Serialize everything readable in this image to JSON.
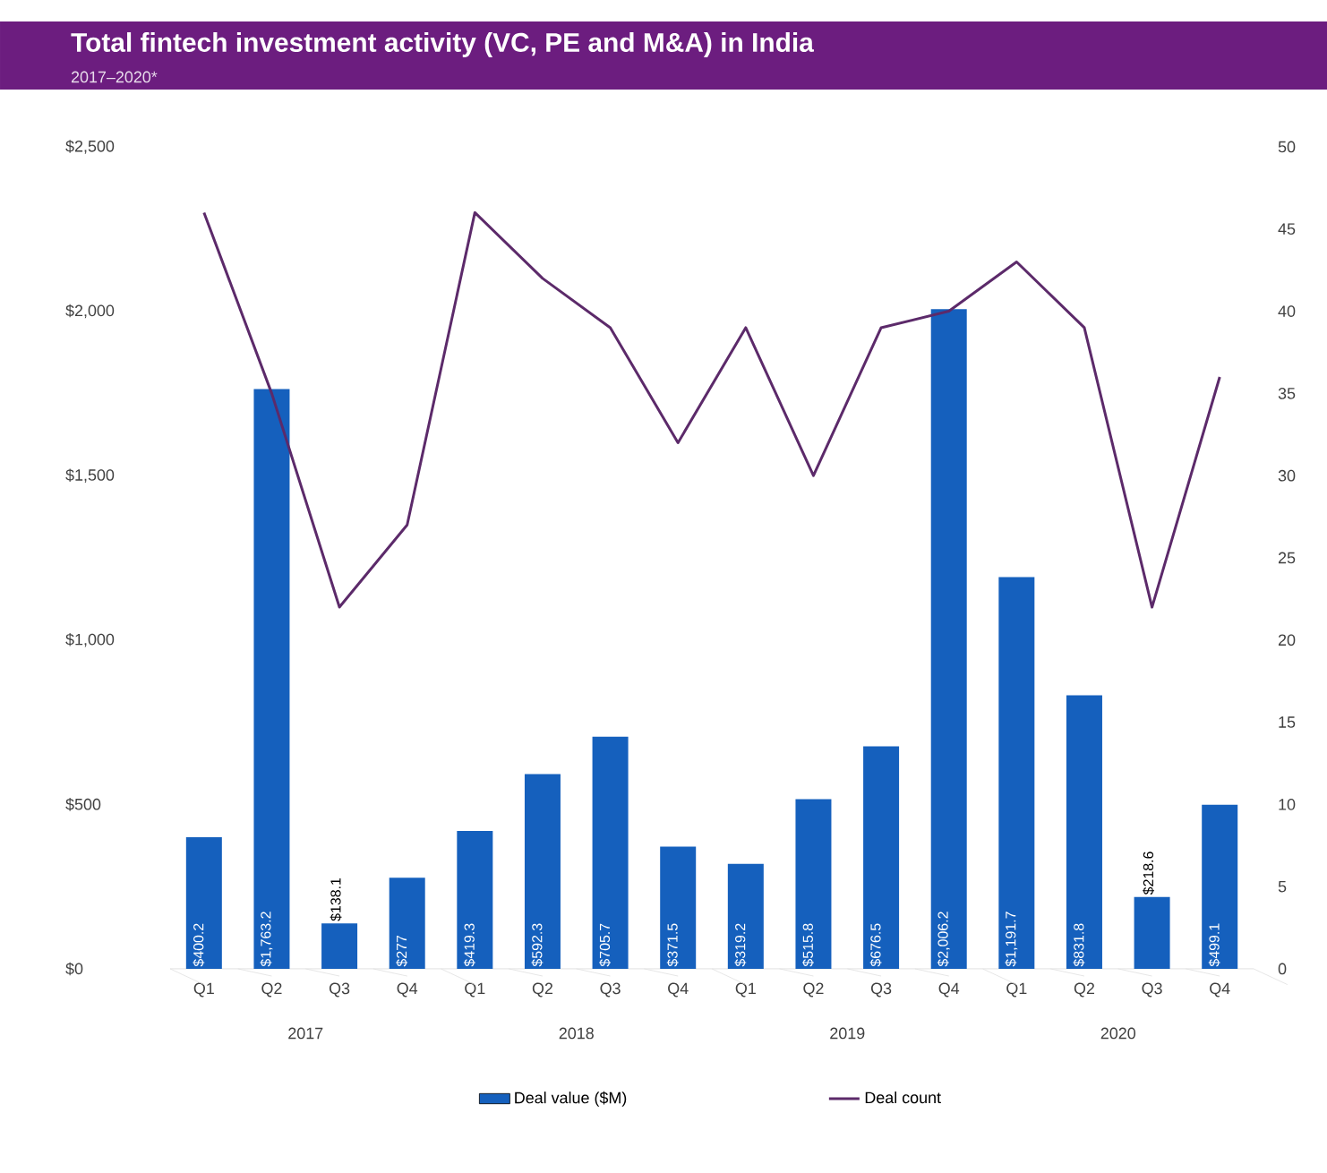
{
  "chart_data": {
    "type": "bar",
    "title": "Total fintech investment activity (VC, PE and M&A) in India",
    "subtitle": "2017–2020*",
    "categories": [
      "Q1",
      "Q2",
      "Q3",
      "Q4",
      "Q1",
      "Q2",
      "Q3",
      "Q4",
      "Q1",
      "Q2",
      "Q3",
      "Q4",
      "Q1",
      "Q2",
      "Q3",
      "Q4"
    ],
    "annotations": [
      "2017",
      "2018",
      "2019",
      "2020"
    ],
    "series": [
      {
        "name": "Deal value ($M)",
        "color": "#1560bd",
        "values": [
          400.2,
          1763.2,
          138.1,
          277,
          419.3,
          592.3,
          705.7,
          371.5,
          319.2,
          515.8,
          676.5,
          2006.2,
          1191.7,
          831.8,
          218.6,
          499.1
        ],
        "value_labels": [
          "$400.2",
          "$1,763.2",
          "$138.1",
          "$277",
          "$419.3",
          "$592.3",
          "$705.7",
          "$371.5",
          "$319.2",
          "$515.8",
          "$676.5",
          "$2,006.2",
          "$1,191.7",
          "$831.8",
          "$218.6",
          "$499.1"
        ]
      },
      {
        "name": "Deal count",
        "type": "line",
        "axis": "y2",
        "color": "#5c2a6a",
        "values": [
          46,
          35,
          22,
          27,
          46,
          42,
          39,
          32,
          39,
          30,
          39,
          40,
          43,
          39,
          22,
          36
        ]
      }
    ],
    "ylim": [
      0,
      2500
    ],
    "yticks": [
      {
        "value": 0,
        "label": "$0"
      },
      {
        "value": 500,
        "label": "$500"
      },
      {
        "value": 1000,
        "label": "$1,000"
      },
      {
        "value": 1500,
        "label": "$1,500"
      },
      {
        "value": 2000,
        "label": "$2,000"
      },
      {
        "value": 2500,
        "label": "$2,500"
      }
    ],
    "y2lim": [
      0,
      50
    ],
    "y2ticks": [
      0,
      5,
      10,
      15,
      20,
      25,
      30,
      35,
      40,
      45,
      50
    ],
    "legend": "bottom",
    "marker": "none"
  }
}
